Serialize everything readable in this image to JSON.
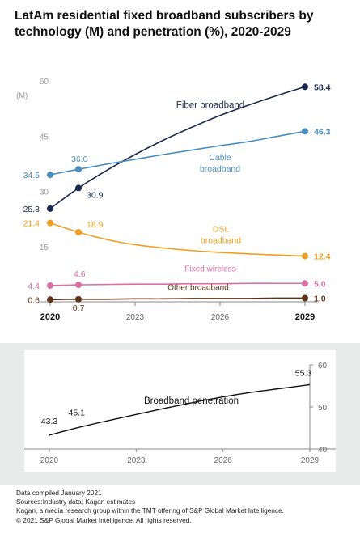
{
  "title": "LatAm residential fixed broadband subscribers by technology (M) and penetration (%), 2020-2029",
  "footer": {
    "line1": "Data compiled January 2021",
    "line2": "Sources:Industry data; Kagan estimates",
    "line3": "Kagan, a media research group within the TMT offering of S&P Global Market Intelligence.",
    "line4": "© 2021 S&P Global Market Intelligence. All rights reserved."
  },
  "chart_data": [
    {
      "type": "line",
      "ylabel": "(M)",
      "ylim": [
        0,
        60
      ],
      "yticks": [
        "15",
        "30",
        "45",
        "60"
      ],
      "xlim": [
        2020,
        2029
      ],
      "xticks": [
        "2020",
        "2023",
        "2026",
        "2029"
      ],
      "grid": false,
      "series": [
        {
          "name": "Fiber broadband",
          "label": "Fiber broadband",
          "color": "#1c2a4f",
          "x": [
            2020,
            2021,
            2022,
            2023,
            2024,
            2025,
            2026,
            2027,
            2028,
            2029
          ],
          "values": [
            25.3,
            30.9,
            35.7,
            40.0,
            43.9,
            47.4,
            50.6,
            53.4,
            56.0,
            58.4
          ],
          "labels": [
            {
              "x": 2020,
              "text": "25.3"
            },
            {
              "x": 2021,
              "text": "30.9"
            },
            {
              "x": 2029,
              "text": "58.4"
            }
          ]
        },
        {
          "name": "Cable broadband",
          "label": "Cable broadband",
          "color": "#4a8ec0",
          "x": [
            2020,
            2021,
            2022,
            2023,
            2024,
            2025,
            2026,
            2027,
            2028,
            2029
          ],
          "values": [
            34.5,
            36.0,
            37.4,
            38.7,
            40.0,
            41.2,
            42.4,
            43.5,
            44.9,
            46.3
          ],
          "labels": [
            {
              "x": 2020,
              "text": "34.5"
            },
            {
              "x": 2021,
              "text": "36.0"
            },
            {
              "x": 2029,
              "text": "46.3"
            }
          ]
        },
        {
          "name": "DSL broadband",
          "label": "DSL broadband",
          "color": "#f0a020",
          "x": [
            2020,
            2021,
            2022,
            2023,
            2024,
            2025,
            2026,
            2027,
            2028,
            2029
          ],
          "values": [
            21.4,
            18.9,
            16.9,
            15.5,
            14.6,
            13.9,
            13.4,
            13.0,
            12.7,
            12.4
          ],
          "labels": [
            {
              "x": 2020,
              "text": "21.4"
            },
            {
              "x": 2021,
              "text": "18.9"
            },
            {
              "x": 2029,
              "text": "12.4"
            }
          ]
        },
        {
          "name": "Fixed wireless",
          "label": "Fixed wireless",
          "color": "#dd6fa3",
          "x": [
            2020,
            2021,
            2022,
            2023,
            2024,
            2025,
            2026,
            2027,
            2028,
            2029
          ],
          "values": [
            4.4,
            4.6,
            4.7,
            4.8,
            4.8,
            4.9,
            4.9,
            5.0,
            5.0,
            5.0
          ],
          "labels": [
            {
              "x": 2020,
              "text": "4.4"
            },
            {
              "x": 2021,
              "text": "4.6"
            },
            {
              "x": 2029,
              "text": "5.0"
            }
          ]
        },
        {
          "name": "Other broadband",
          "label": "Other broadband",
          "color": "#5c3317",
          "x": [
            2020,
            2021,
            2022,
            2023,
            2024,
            2025,
            2026,
            2027,
            2028,
            2029
          ],
          "values": [
            0.6,
            0.7,
            0.7,
            0.8,
            0.8,
            0.9,
            0.9,
            0.9,
            1.0,
            1.0
          ],
          "labels": [
            {
              "x": 2020,
              "text": "0.6"
            },
            {
              "x": 2021,
              "text": "0.7"
            },
            {
              "x": 2029,
              "text": "1.0"
            }
          ]
        }
      ]
    },
    {
      "type": "line",
      "ylim": [
        40,
        60
      ],
      "yticks": [
        "40",
        "50",
        "60"
      ],
      "xlim": [
        2020,
        2029
      ],
      "xticks": [
        "2020",
        "2023",
        "2026",
        "2029"
      ],
      "grid": false,
      "series": [
        {
          "name": "Broadband penetration",
          "label": "Broadband penetration",
          "color": "#111111",
          "x": [
            2020,
            2021,
            2022,
            2023,
            2024,
            2025,
            2026,
            2027,
            2028,
            2029
          ],
          "values": [
            43.3,
            45.1,
            46.7,
            48.2,
            49.7,
            51.1,
            52.4,
            53.5,
            54.4,
            55.3
          ],
          "labels": [
            {
              "x": 2020,
              "text": "43.3"
            },
            {
              "x": 2021,
              "text": "45.1"
            },
            {
              "x": 2029,
              "text": "55.3"
            }
          ]
        }
      ]
    }
  ]
}
